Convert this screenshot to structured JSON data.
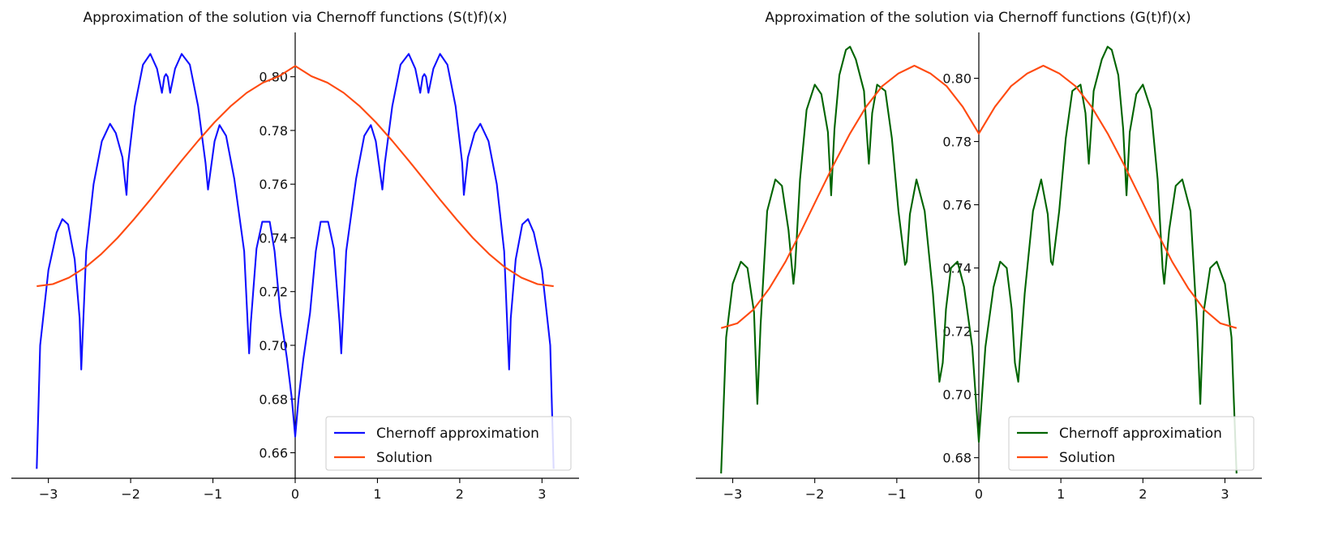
{
  "chart_data": [
    {
      "type": "line",
      "title": "Approximation of the solution via Chernoff functions (S(t)f)(x)",
      "xlabel": "",
      "ylabel": "",
      "xlim": [
        -3.45,
        3.45
      ],
      "ylim": [
        0.6505,
        0.8165
      ],
      "x_ticks": [
        -3,
        -2,
        -1,
        0,
        1,
        2,
        3
      ],
      "x_tick_labels": [
        "−3",
        "−2",
        "−1",
        "0",
        "1",
        "2",
        "3"
      ],
      "y_ticks": [
        0.66,
        0.68,
        0.7,
        0.72,
        0.74,
        0.76,
        0.78,
        0.8
      ],
      "y_tick_labels": [
        "0.66",
        "0.68",
        "0.70",
        "0.72",
        "0.74",
        "0.76",
        "0.78",
        "0.80"
      ],
      "spines": "centered at origin",
      "grid": false,
      "legend_position": "lower-right",
      "series": [
        {
          "name": "Chernoff approximation",
          "color": "#1010ff",
          "x": [
            -3.1416,
            -3.1,
            -3.0,
            -2.9,
            -2.83,
            -2.76,
            -2.68,
            -2.62,
            -2.6,
            -2.54,
            -2.45,
            -2.35,
            -2.25,
            -2.18,
            -2.1,
            -2.05,
            -2.03,
            -1.95,
            -1.85,
            -1.76,
            -1.68,
            -1.62,
            -1.59,
            -1.57,
            -1.55,
            -1.52,
            -1.46,
            -1.38,
            -1.28,
            -1.18,
            -1.09,
            -1.06,
            -0.98,
            -0.92,
            -0.84,
            -0.74,
            -0.62,
            -0.56,
            -0.54,
            -0.47,
            -0.4,
            -0.31,
            -0.25,
            -0.18,
            -0.1,
            -0.04,
            0.0,
            0.04,
            0.1,
            0.18,
            0.25,
            0.31,
            0.4,
            0.47,
            0.54,
            0.56,
            0.62,
            0.74,
            0.84,
            0.92,
            0.98,
            1.06,
            1.09,
            1.18,
            1.28,
            1.38,
            1.46,
            1.52,
            1.55,
            1.57,
            1.59,
            1.62,
            1.68,
            1.76,
            1.85,
            1.95,
            2.03,
            2.05,
            2.1,
            2.18,
            2.25,
            2.35,
            2.45,
            2.54,
            2.6,
            2.62,
            2.68,
            2.76,
            2.83,
            2.9,
            3.0,
            3.1,
            3.1416
          ],
          "y": [
            0.654,
            0.7,
            0.728,
            0.742,
            0.747,
            0.745,
            0.732,
            0.71,
            0.691,
            0.735,
            0.76,
            0.776,
            0.7825,
            0.779,
            0.77,
            0.756,
            0.768,
            0.789,
            0.8045,
            0.8085,
            0.803,
            0.794,
            0.8,
            0.801,
            0.8,
            0.794,
            0.803,
            0.8085,
            0.8045,
            0.789,
            0.768,
            0.758,
            0.776,
            0.782,
            0.778,
            0.762,
            0.735,
            0.697,
            0.708,
            0.736,
            0.746,
            0.746,
            0.735,
            0.712,
            0.695,
            0.68,
            0.666,
            0.68,
            0.695,
            0.712,
            0.735,
            0.746,
            0.746,
            0.736,
            0.708,
            0.697,
            0.735,
            0.762,
            0.778,
            0.782,
            0.776,
            0.758,
            0.768,
            0.789,
            0.8045,
            0.8085,
            0.803,
            0.794,
            0.8,
            0.801,
            0.8,
            0.794,
            0.803,
            0.8085,
            0.8045,
            0.789,
            0.768,
            0.756,
            0.77,
            0.779,
            0.7825,
            0.776,
            0.76,
            0.735,
            0.691,
            0.71,
            0.732,
            0.745,
            0.747,
            0.742,
            0.728,
            0.7,
            0.654
          ]
        },
        {
          "name": "Solution",
          "color": "#ff4a10",
          "formula_sampled": true,
          "x": [
            -3.1416,
            -2.9452,
            -2.7489,
            -2.5525,
            -2.3562,
            -2.1598,
            -1.9635,
            -1.7671,
            -1.5708,
            -1.3744,
            -1.1781,
            -0.9817,
            -0.7854,
            -0.589,
            -0.3927,
            -0.1963,
            0.0,
            0.1963,
            0.3927,
            0.589,
            0.7854,
            0.9817,
            1.1781,
            1.3744,
            1.5708,
            1.7671,
            1.9635,
            2.1598,
            2.3562,
            2.5525,
            2.7489,
            2.9452,
            3.1416
          ],
          "y": [
            0.722,
            0.7228,
            0.7252,
            0.729,
            0.734,
            0.74,
            0.7468,
            0.754,
            0.7615,
            0.769,
            0.7762,
            0.783,
            0.789,
            0.794,
            0.7978,
            0.8002,
            0.804,
            0.8002,
            0.7978,
            0.794,
            0.789,
            0.783,
            0.7762,
            0.769,
            0.7615,
            0.754,
            0.7468,
            0.74,
            0.734,
            0.729,
            0.7252,
            0.7228,
            0.722
          ]
        }
      ]
    },
    {
      "type": "line",
      "title": "Approximation of the solution via Chernoff functions (G(t)f)(x)",
      "xlabel": "",
      "ylabel": "",
      "xlim": [
        -3.45,
        3.45
      ],
      "ylim": [
        0.6735,
        0.8145
      ],
      "x_ticks": [
        -3,
        -2,
        -1,
        0,
        1,
        2,
        3
      ],
      "x_tick_labels": [
        "−3",
        "−2",
        "−1",
        "0",
        "1",
        "2",
        "3"
      ],
      "y_ticks": [
        0.68,
        0.7,
        0.72,
        0.74,
        0.76,
        0.78,
        0.8
      ],
      "y_tick_labels": [
        "0.68",
        "0.70",
        "0.72",
        "0.74",
        "0.76",
        "0.78",
        "0.80"
      ],
      "spines": "centered at origin",
      "grid": false,
      "legend_position": "lower-right",
      "series": [
        {
          "name": "Chernoff approximation",
          "color": "#006400",
          "x": [
            -3.1416,
            -3.08,
            -3.0,
            -2.9,
            -2.82,
            -2.74,
            -2.7,
            -2.66,
            -2.58,
            -2.48,
            -2.4,
            -2.32,
            -2.26,
            -2.24,
            -2.18,
            -2.1,
            -2.0,
            -1.92,
            -1.84,
            -1.8,
            -1.76,
            -1.7,
            -1.62,
            -1.57,
            -1.5,
            -1.4,
            -1.34,
            -1.3,
            -1.24,
            -1.14,
            -1.06,
            -0.98,
            -0.9,
            -0.88,
            -0.84,
            -0.76,
            -0.66,
            -0.56,
            -0.48,
            -0.44,
            -0.4,
            -0.34,
            -0.26,
            -0.18,
            -0.08,
            0.0,
            0.08,
            0.18,
            0.26,
            0.34,
            0.4,
            0.44,
            0.48,
            0.56,
            0.66,
            0.76,
            0.84,
            0.88,
            0.9,
            0.98,
            1.06,
            1.14,
            1.24,
            1.3,
            1.34,
            1.4,
            1.5,
            1.57,
            1.62,
            1.7,
            1.76,
            1.8,
            1.84,
            1.92,
            2.0,
            2.1,
            2.18,
            2.24,
            2.26,
            2.32,
            2.4,
            2.48,
            2.58,
            2.66,
            2.7,
            2.74,
            2.82,
            2.9,
            3.0,
            3.08,
            3.1416
          ],
          "y": [
            0.675,
            0.718,
            0.735,
            0.742,
            0.74,
            0.726,
            0.697,
            0.722,
            0.758,
            0.768,
            0.766,
            0.752,
            0.735,
            0.74,
            0.768,
            0.79,
            0.798,
            0.795,
            0.783,
            0.763,
            0.784,
            0.801,
            0.809,
            0.81,
            0.806,
            0.796,
            0.773,
            0.789,
            0.798,
            0.796,
            0.781,
            0.758,
            0.741,
            0.742,
            0.757,
            0.768,
            0.758,
            0.732,
            0.704,
            0.71,
            0.727,
            0.74,
            0.742,
            0.734,
            0.715,
            0.685,
            0.715,
            0.734,
            0.742,
            0.74,
            0.727,
            0.71,
            0.704,
            0.732,
            0.758,
            0.768,
            0.757,
            0.742,
            0.741,
            0.758,
            0.781,
            0.796,
            0.798,
            0.789,
            0.773,
            0.796,
            0.806,
            0.81,
            0.809,
            0.801,
            0.784,
            0.763,
            0.783,
            0.795,
            0.798,
            0.79,
            0.768,
            0.74,
            0.735,
            0.752,
            0.766,
            0.768,
            0.758,
            0.722,
            0.697,
            0.726,
            0.74,
            0.742,
            0.735,
            0.718,
            0.675
          ]
        },
        {
          "name": "Solution",
          "color": "#ff4a10",
          "formula_sampled": true,
          "x": [
            -3.1416,
            -2.9452,
            -2.7489,
            -2.5525,
            -2.3562,
            -2.1598,
            -1.9635,
            -1.7671,
            -1.5708,
            -1.3744,
            -1.1781,
            -0.9817,
            -0.7854,
            -0.589,
            -0.3927,
            -0.1963,
            0.0,
            0.1963,
            0.3927,
            0.589,
            0.7854,
            0.9817,
            1.1781,
            1.3744,
            1.5708,
            1.7671,
            1.9635,
            2.1598,
            2.3562,
            2.5525,
            2.7489,
            2.9452,
            3.1416
          ],
          "y": [
            0.721,
            0.7225,
            0.7268,
            0.7336,
            0.742,
            0.752,
            0.7625,
            0.7728,
            0.7825,
            0.791,
            0.7975,
            0.8015,
            0.804,
            0.8015,
            0.7975,
            0.791,
            0.7825,
            0.791,
            0.7975,
            0.8015,
            0.804,
            0.8015,
            0.7975,
            0.791,
            0.7825,
            0.7728,
            0.7625,
            0.752,
            0.742,
            0.7336,
            0.7268,
            0.7225,
            0.721
          ]
        }
      ]
    }
  ]
}
